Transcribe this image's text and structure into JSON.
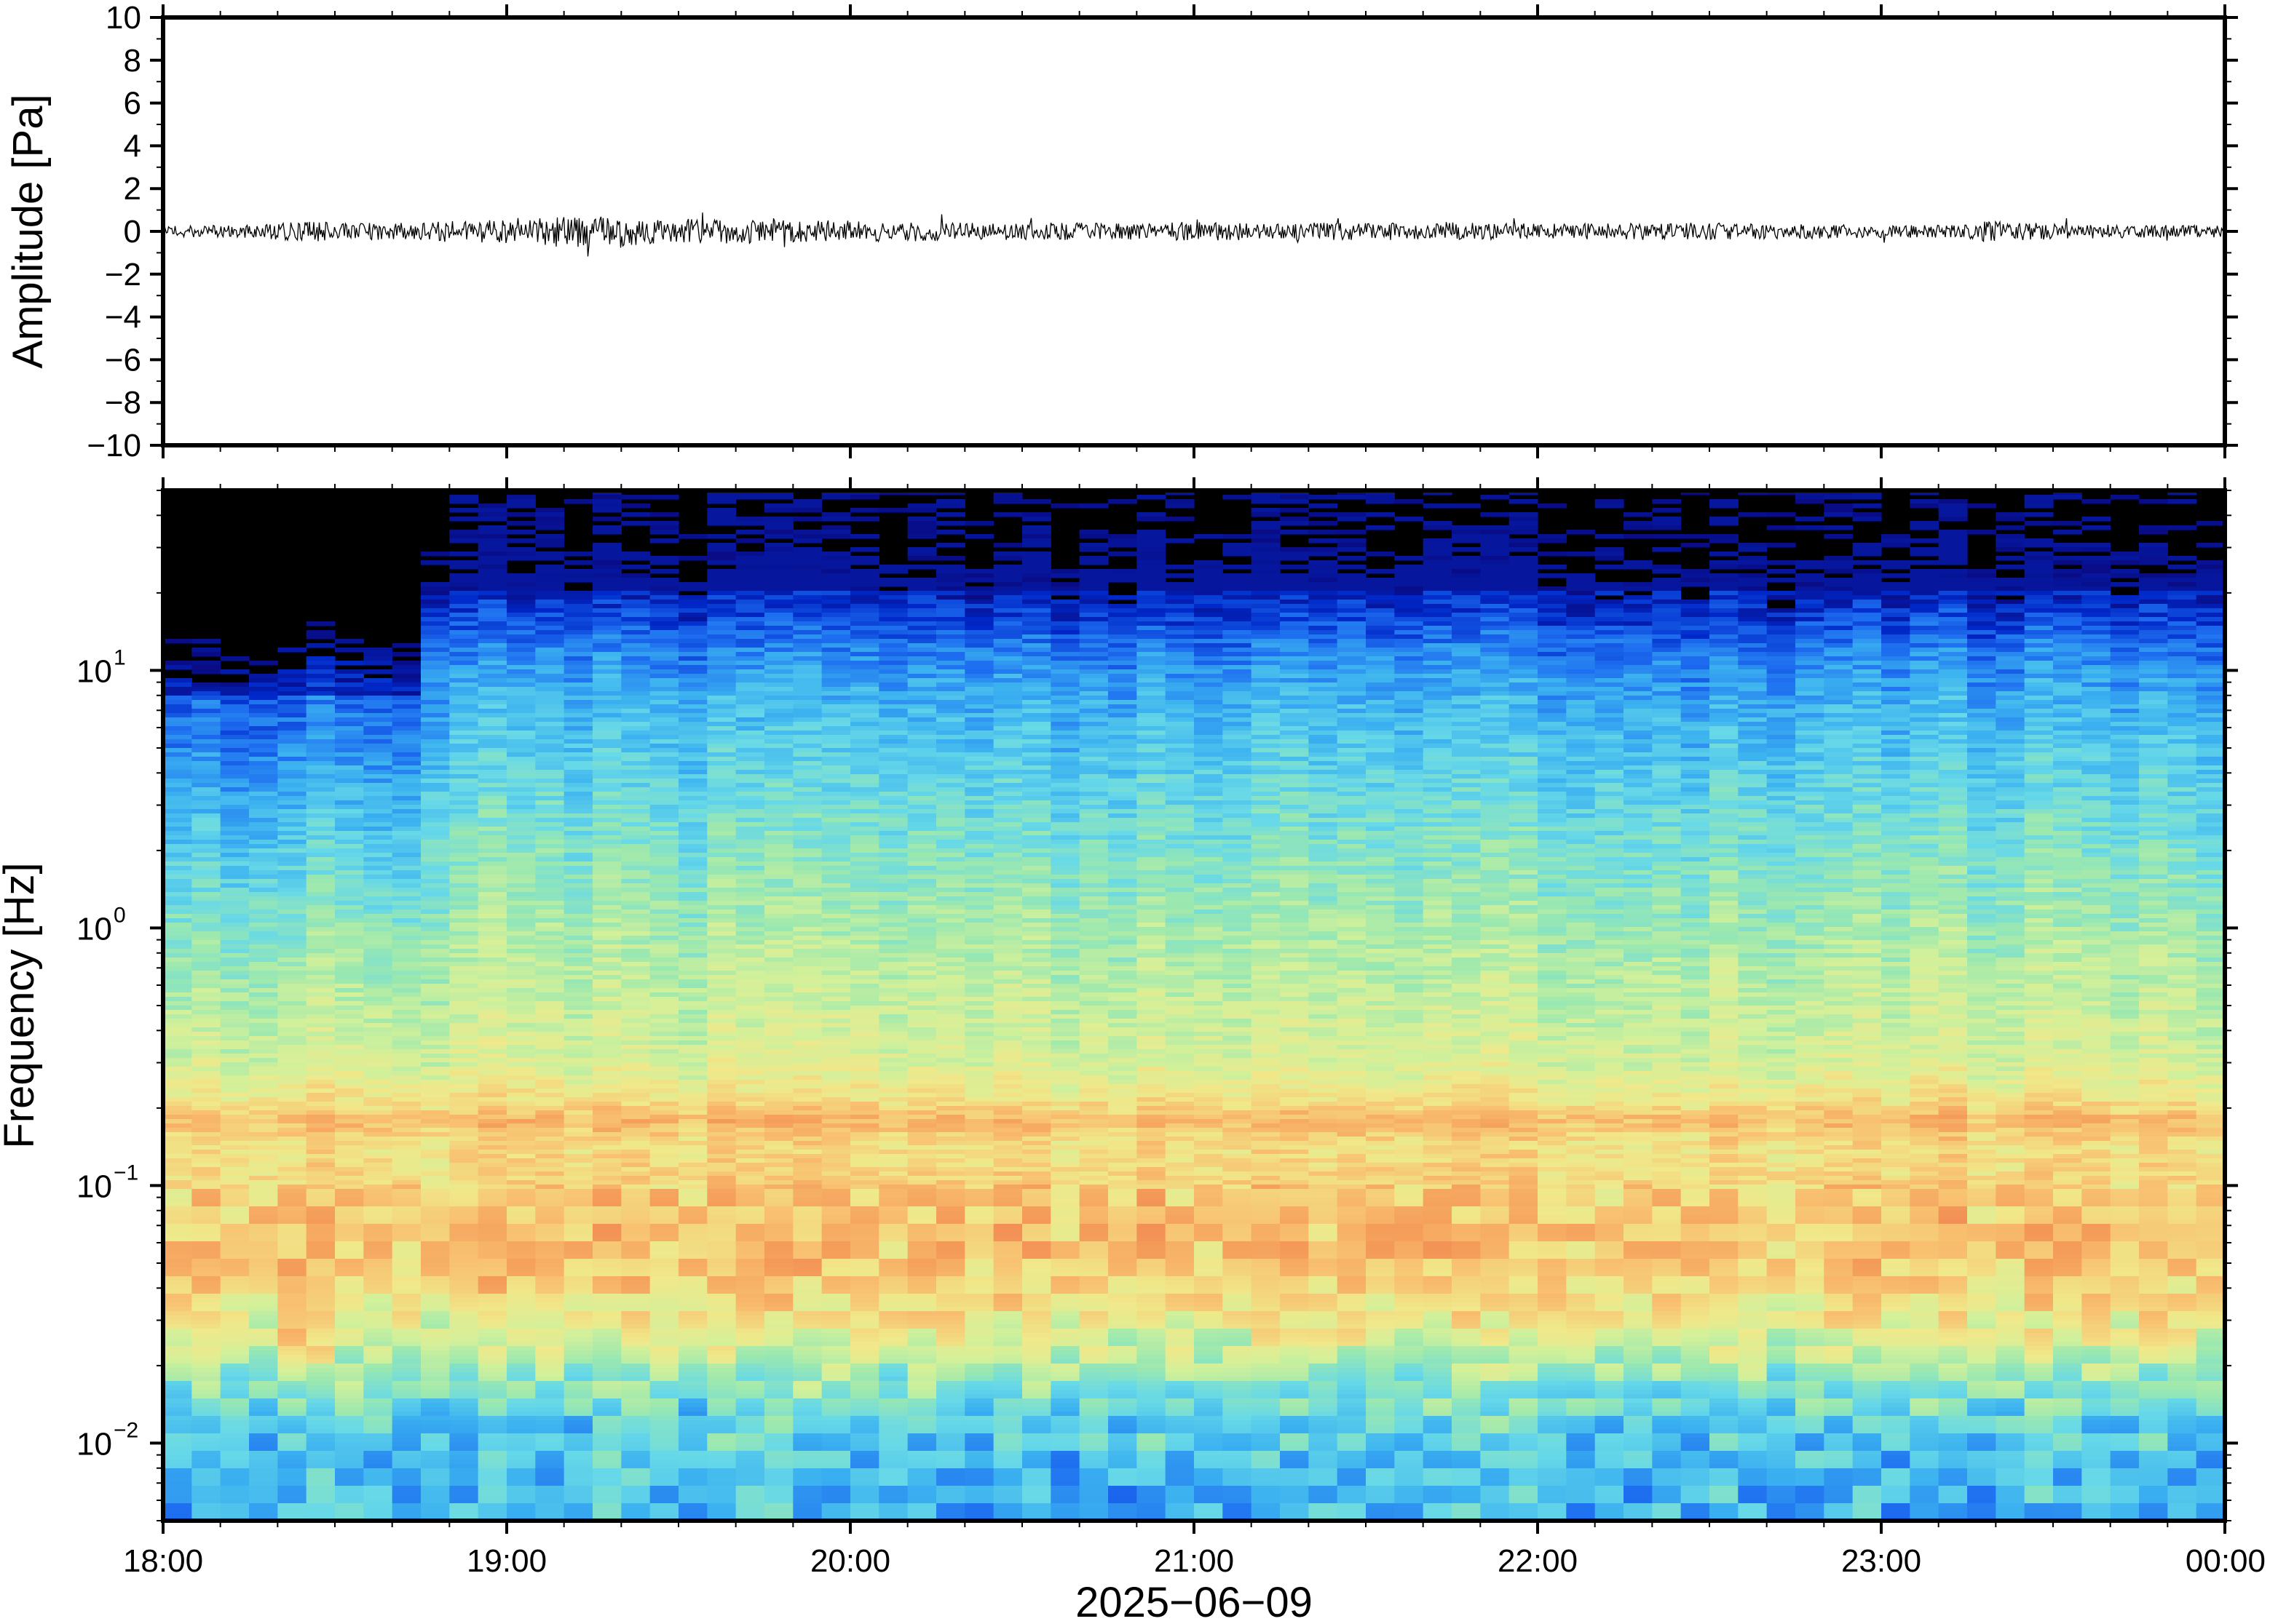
{
  "chart_data": [
    {
      "type": "line",
      "ylabel": "Amplitude [Pa]",
      "ylim": [
        -10,
        10
      ],
      "yticks": [
        10,
        8,
        6,
        4,
        2,
        0,
        -2,
        -4,
        -6,
        -8,
        -10
      ],
      "ytick_labels": [
        "10",
        "8",
        "6",
        "4",
        "2",
        "0",
        "−2",
        "−4",
        "−6",
        "−8",
        "−10"
      ],
      "xlim_hours": [
        18,
        24
      ],
      "series": [
        {
          "color": "#000000",
          "x_hours": [
            18.0,
            18.25,
            18.45,
            18.5,
            18.75,
            19.0,
            19.2,
            19.5,
            19.75,
            20.0,
            20.25,
            20.5,
            20.75,
            21.0,
            21.25,
            21.5,
            21.75,
            22.0,
            22.25,
            22.5,
            22.75,
            23.0,
            23.25,
            23.3,
            23.5,
            23.75,
            24.0
          ],
          "envelope_pa": [
            0.25,
            0.3,
            0.5,
            0.35,
            0.45,
            0.6,
            0.75,
            0.6,
            0.55,
            0.5,
            0.45,
            0.4,
            0.4,
            0.45,
            0.4,
            0.4,
            0.45,
            0.35,
            0.4,
            0.4,
            0.35,
            0.3,
            0.3,
            0.55,
            0.35,
            0.3,
            0.3
          ]
        }
      ]
    },
    {
      "type": "heatmap",
      "ylabel": "Frequency [Hz]",
      "xlabel": "2025−06−09",
      "yscale": "log",
      "ylim_hz": [
        0.005,
        50
      ],
      "yticks_hz": [
        10,
        1,
        0.1,
        0.01
      ],
      "ytick_labels": [
        {
          "base": "10",
          "exp": "1"
        },
        {
          "base": "10",
          "exp": "0"
        },
        {
          "base": "10",
          "exp": "−1"
        },
        {
          "base": "10",
          "exp": "−2"
        }
      ],
      "xlim_hours": [
        18,
        24
      ],
      "xticks_hours": [
        18,
        19,
        20,
        21,
        22,
        23,
        24
      ],
      "xtick_labels": [
        "18:00",
        "19:00",
        "20:00",
        "21:00",
        "22:00",
        "23:00",
        "00:00"
      ],
      "colormap": "jet",
      "colormap_stops": [
        "#0b0472",
        "#0028c8",
        "#1e6ef0",
        "#3ab0f0",
        "#66d8e8",
        "#9ae8b0",
        "#d2f09a",
        "#f0e88a",
        "#f8c070",
        "#f49a58",
        "#ec6a50"
      ],
      "relative_power_profile": {
        "freq_hz": [
          0.005,
          0.008,
          0.012,
          0.018,
          0.025,
          0.035,
          0.05,
          0.07,
          0.1,
          0.14,
          0.18,
          0.22,
          0.3,
          0.5,
          1.0,
          2.0,
          4.0,
          8.0,
          12.0,
          18.0,
          25.0,
          35.0,
          50.0
        ],
        "level": [
          0.32,
          0.33,
          0.38,
          0.5,
          0.62,
          0.72,
          0.78,
          0.8,
          0.76,
          0.72,
          0.82,
          0.7,
          0.62,
          0.58,
          0.52,
          0.45,
          0.38,
          0.3,
          0.22,
          0.1,
          0.04,
          0.0,
          0.0
        ]
      },
      "quiet_period_hours": [
        18.0,
        18.78
      ],
      "hotspot": {
        "hour": 18.4,
        "freq_hz": 0.025
      }
    }
  ]
}
